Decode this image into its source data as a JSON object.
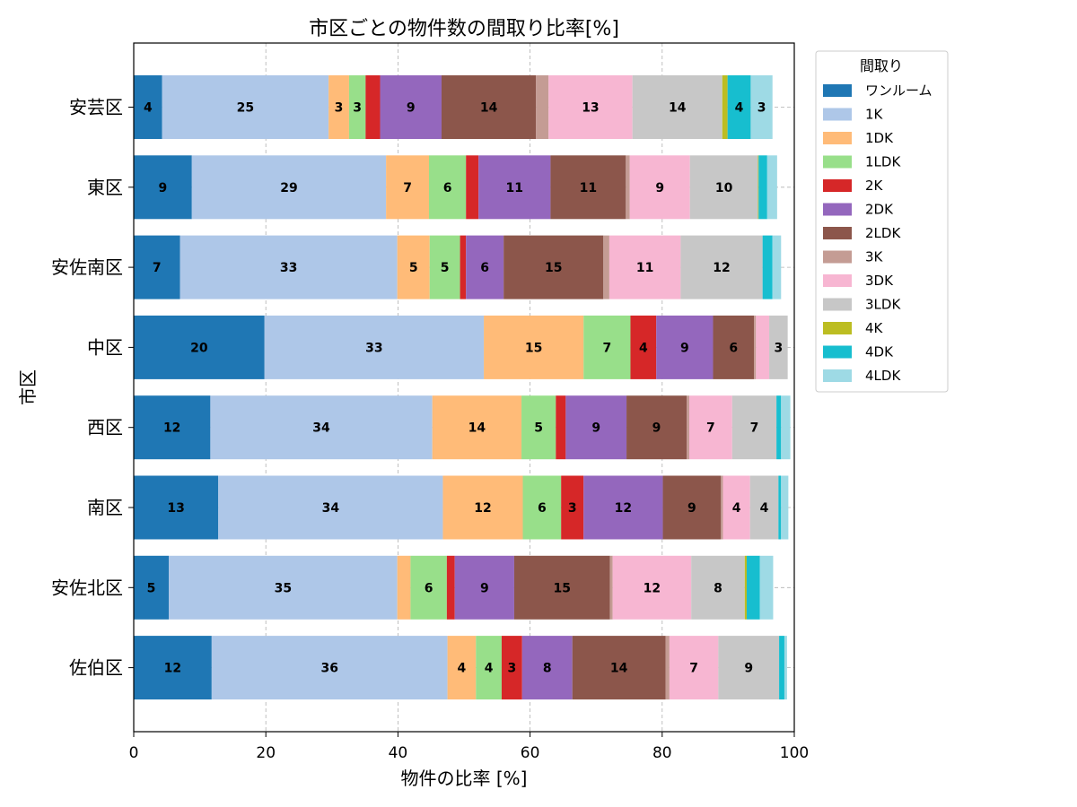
{
  "chart_data": {
    "type": "bar",
    "orientation": "horizontal",
    "stacked": true,
    "title": "市区ごとの物件数の間取り比率[%]",
    "xlabel": "物件の比率 [%]",
    "ylabel": "市区",
    "xlim": [
      0,
      100
    ],
    "xticks": [
      "0",
      "20",
      "40",
      "60",
      "80",
      "100"
    ],
    "grid": true,
    "legend_title": "間取り",
    "legend_position": "outside-right-top",
    "categories": [
      "安芸区",
      "東区",
      "安佐南区",
      "中区",
      "西区",
      "南区",
      "安佐北区",
      "佐伯区"
    ],
    "series": [
      {
        "name": "ワンルーム",
        "color": "#1f77b4",
        "values": [
          4.3,
          8.8,
          7.0,
          19.8,
          11.6,
          12.8,
          5.3,
          11.8
        ]
      },
      {
        "name": "1K",
        "color": "#aec7e8",
        "values": [
          25.2,
          29.4,
          32.9,
          33.2,
          33.6,
          34.0,
          34.6,
          35.7
        ]
      },
      {
        "name": "1DK",
        "color": "#ffbb78",
        "values": [
          3.1,
          6.5,
          4.9,
          15.1,
          13.5,
          12.1,
          2.0,
          4.3
        ]
      },
      {
        "name": "1LDK",
        "color": "#98df8a",
        "values": [
          2.5,
          5.6,
          4.6,
          7.1,
          5.2,
          5.8,
          5.5,
          3.9
        ]
      },
      {
        "name": "2K",
        "color": "#d62728",
        "values": [
          2.2,
          1.9,
          0.9,
          3.9,
          1.5,
          3.4,
          1.2,
          3.1
        ]
      },
      {
        "name": "2DK",
        "color": "#9467bd",
        "values": [
          9.3,
          10.9,
          5.7,
          8.6,
          9.2,
          12.0,
          9.0,
          7.6
        ]
      },
      {
        "name": "2LDK",
        "color": "#8c564b",
        "values": [
          14.3,
          11.4,
          15.1,
          6.2,
          9.1,
          8.8,
          14.5,
          14.1
        ]
      },
      {
        "name": "3K",
        "color": "#c49c94",
        "values": [
          1.9,
          0.6,
          0.9,
          0.3,
          0.4,
          0.3,
          0.4,
          0.6
        ]
      },
      {
        "name": "3DK",
        "color": "#f7b6d2",
        "values": [
          12.7,
          9.1,
          10.8,
          2.0,
          6.5,
          4.1,
          11.9,
          7.4
        ]
      },
      {
        "name": "3LDK",
        "color": "#c7c7c7",
        "values": [
          13.6,
          10.3,
          12.4,
          2.8,
          6.7,
          4.3,
          8.1,
          9.2
        ]
      },
      {
        "name": "4K",
        "color": "#bcbd22",
        "values": [
          0.8,
          0.1,
          0.0,
          0.0,
          0.0,
          0.0,
          0.3,
          0.0
        ]
      },
      {
        "name": "4DK",
        "color": "#17becf",
        "values": [
          3.5,
          1.3,
          1.5,
          0.0,
          0.7,
          0.4,
          2.0,
          0.8
        ]
      },
      {
        "name": "4LDK",
        "color": "#9edae5",
        "values": [
          3.3,
          1.5,
          1.3,
          0.0,
          1.4,
          1.1,
          2.0,
          0.4
        ]
      }
    ]
  }
}
